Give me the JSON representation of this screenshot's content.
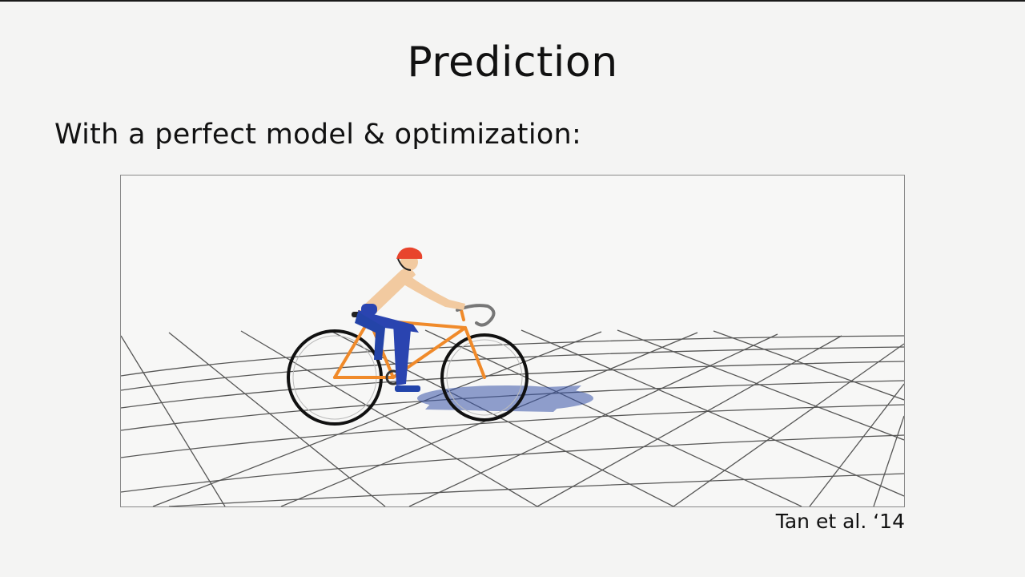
{
  "slide": {
    "title": "Prediction",
    "subtitle": "With a perfect model & optimization:",
    "citation": "Tan et al. ‘14"
  },
  "colors": {
    "background": "#f4f4f3",
    "bike_frame": "#f08a2a",
    "helmet": "#e8442c",
    "pants": "#2a44b0",
    "skin": "#f2caa0",
    "grid_line": "#333333"
  },
  "icons": {
    "simulation": "bicycle-rider-figure"
  }
}
